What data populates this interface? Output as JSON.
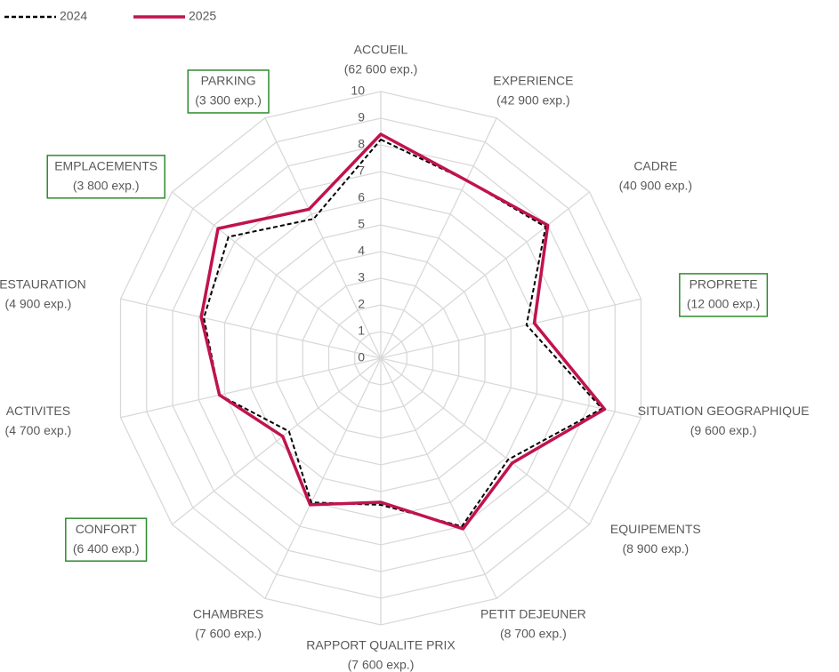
{
  "chart_data": {
    "type": "radar",
    "categories": [
      "ACCUEIL",
      "EXPERIENCE",
      "CADRE",
      "PROPRETE",
      "SITUATION GEOGRAPHIQUE",
      "EQUIPEMENTS",
      "PETIT DEJEUNER",
      "RAPPORT QUALITE PRIX",
      "CHAMBRES",
      "CONFORT",
      "ACTIVITES",
      "RESTAURATION",
      "EMPLACEMENTS",
      "PARKING"
    ],
    "category_counts": [
      "(62 600 exp.)",
      "(42 900 exp.)",
      "(40 900 exp.)",
      "(12 000 exp.)",
      "(9 600 exp.)",
      "(8 900 exp.)",
      "(8 700 exp.)",
      "(7 600 exp.)",
      "(7 600 exp.)",
      "(6 400 exp.)",
      "(4 700 exp.)",
      "(4 900 exp.)",
      "(3 800 exp.)",
      "(3 300 exp.)"
    ],
    "highlighted": [
      3,
      9,
      12,
      13
    ],
    "highlight_color": "#2e8b2e",
    "series": [
      {
        "name": "2024",
        "color": "#000000",
        "dashed": true,
        "values": [
          8.2,
          7.4,
          7.9,
          5.6,
          8.5,
          6.1,
          7.0,
          5.5,
          6.0,
          4.4,
          6.2,
          6.8,
          7.3,
          5.8
        ]
      },
      {
        "name": "2025",
        "color": "#c0134f",
        "dashed": false,
        "values": [
          8.4,
          7.4,
          8.0,
          5.9,
          8.6,
          6.3,
          7.1,
          5.4,
          6.1,
          4.7,
          6.2,
          6.9,
          7.8,
          6.2
        ]
      }
    ],
    "ylim": [
      0,
      10
    ],
    "yticks": [
      0,
      1,
      2,
      3,
      4,
      5,
      6,
      7,
      8,
      9,
      10
    ],
    "grid": true
  }
}
